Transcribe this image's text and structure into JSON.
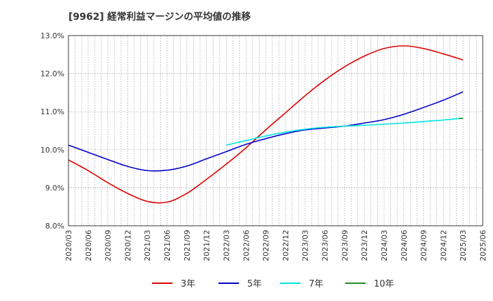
{
  "chart_data": {
    "type": "line",
    "title": "[9962]  経常利益マージンの平均値の推移",
    "xlabel": "",
    "ylabel": "",
    "ylim": [
      8.0,
      13.0
    ],
    "yticks": [
      "8.0%",
      "9.0%",
      "10.0%",
      "11.0%",
      "12.0%",
      "13.0%"
    ],
    "x_tick_labels": [
      "2020/03",
      "2020/06",
      "2020/09",
      "2020/12",
      "2021/03",
      "2021/06",
      "2021/09",
      "2021/12",
      "2022/03",
      "2022/06",
      "2022/09",
      "2022/12",
      "2023/03",
      "2023/06",
      "2023/09",
      "2023/12",
      "2024/03",
      "2024/06",
      "2024/09",
      "2024/12",
      "2025/03",
      "2025/06"
    ],
    "grid": true,
    "legend_position": "bottom",
    "series": [
      {
        "name": "3年",
        "color": "#dd0000",
        "x": [
          "2020/03",
          "2020/06",
          "2020/09",
          "2020/12",
          "2021/03",
          "2021/06",
          "2021/09",
          "2021/12",
          "2022/03",
          "2022/06",
          "2022/09",
          "2022/12",
          "2023/03",
          "2023/06",
          "2023/09",
          "2023/12",
          "2024/03",
          "2024/06",
          "2024/09",
          "2024/12",
          "2025/03"
        ],
        "values": [
          9.73,
          9.45,
          9.13,
          8.85,
          8.64,
          8.62,
          8.85,
          9.22,
          9.62,
          10.05,
          10.52,
          10.97,
          11.42,
          11.83,
          12.18,
          12.46,
          12.66,
          12.73,
          12.66,
          12.52,
          12.36
        ]
      },
      {
        "name": "5年",
        "color": "#0000cc",
        "x": [
          "2020/03",
          "2020/06",
          "2020/09",
          "2020/12",
          "2021/03",
          "2021/06",
          "2021/09",
          "2021/12",
          "2022/03",
          "2022/06",
          "2022/09",
          "2022/12",
          "2023/03",
          "2023/06",
          "2023/09",
          "2023/12",
          "2024/03",
          "2024/06",
          "2024/09",
          "2024/12",
          "2025/03"
        ],
        "values": [
          10.12,
          9.93,
          9.74,
          9.56,
          9.45,
          9.46,
          9.57,
          9.76,
          9.95,
          10.14,
          10.29,
          10.42,
          10.52,
          10.57,
          10.62,
          10.7,
          10.79,
          10.93,
          11.11,
          11.3,
          11.52
        ]
      },
      {
        "name": "7年",
        "color": "#00e5e5",
        "x": [
          "2022/03",
          "2022/06",
          "2022/09",
          "2022/12",
          "2023/03",
          "2023/06",
          "2023/09",
          "2023/12",
          "2024/03",
          "2024/06",
          "2024/09",
          "2024/12",
          "2025/03"
        ],
        "values": [
          10.12,
          10.24,
          10.36,
          10.46,
          10.54,
          10.59,
          10.62,
          10.64,
          10.67,
          10.7,
          10.74,
          10.78,
          10.83
        ]
      },
      {
        "name": "10年",
        "color": "#228b22",
        "x": [
          "2025/03"
        ],
        "values": [
          10.82
        ]
      }
    ]
  }
}
